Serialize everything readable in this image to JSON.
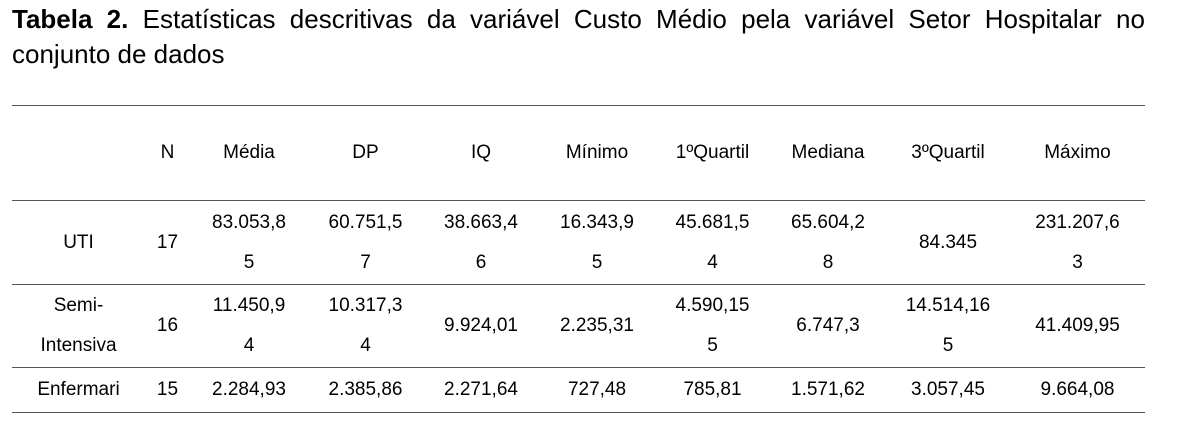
{
  "caption": {
    "label": "Tabela 2.",
    "text": "Estatísticas descritivas da variável Custo Médio pela variável Setor Hospitalar  no conjunto de dados"
  },
  "table": {
    "header": [
      "",
      "N",
      "Média",
      "DP",
      "IQ",
      "Mínimo",
      "1ºQuartil",
      "Mediana",
      "3ºQuartil",
      "Máximo"
    ],
    "rows": [
      [
        "UTI",
        "17",
        "83.053,85",
        "60.751,57",
        "38.663,46",
        "16.343,95",
        "45.681,54",
        "65.604,28",
        "84.345",
        "231.207,63"
      ],
      [
        "Semi-Intensiva",
        "16",
        "11.450,94",
        "10.317,34",
        "9.924,01",
        "2.235,31",
        "4.590,155",
        "6.747,3",
        "14.514,165",
        "41.409,95"
      ],
      [
        "Enfermari",
        "15",
        "2.284,93",
        "2.385,86",
        "2.271,64",
        "727,48",
        "785,81",
        "1.571,62",
        "3.057,45",
        "9.664,08"
      ]
    ]
  }
}
